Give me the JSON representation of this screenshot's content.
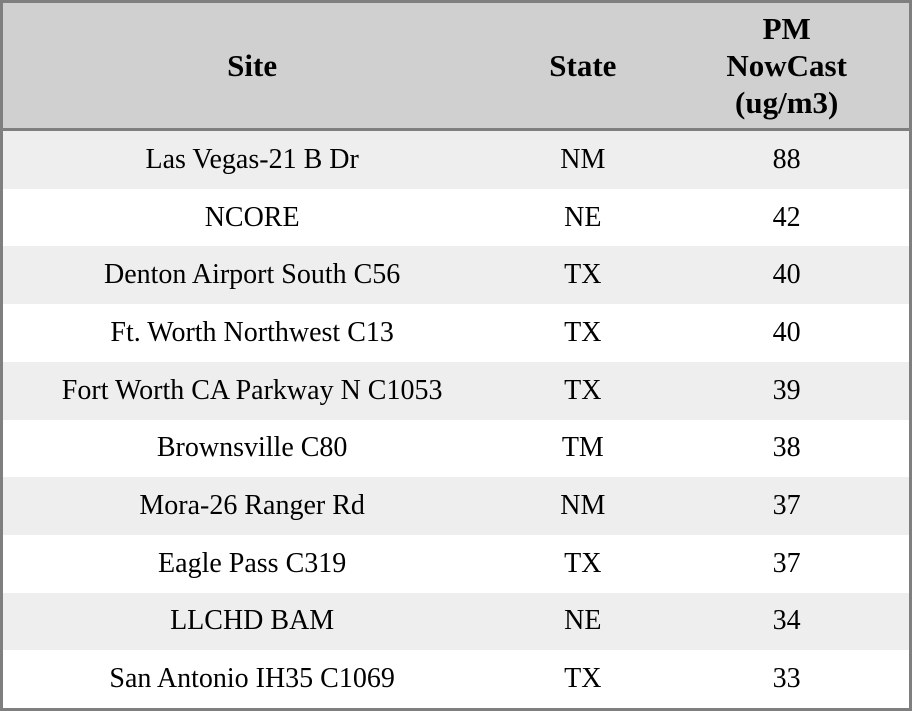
{
  "chart_data": {
    "type": "table",
    "title": "",
    "columns": [
      "Site",
      "State",
      "PM NowCast (ug/m3)"
    ],
    "pm_header_lines": [
      "PM",
      "NowCast",
      "(ug/m3)"
    ],
    "rows": [
      [
        "Las Vegas-21 B Dr",
        "NM",
        "88"
      ],
      [
        "NCORE",
        "NE",
        "42"
      ],
      [
        "Denton Airport South C56",
        "TX",
        "40"
      ],
      [
        "Ft. Worth Northwest C13",
        "TX",
        "40"
      ],
      [
        "Fort Worth CA Parkway N C1053",
        "TX",
        "39"
      ],
      [
        "Brownsville C80",
        "TM",
        "38"
      ],
      [
        "Mora-26 Ranger Rd",
        "NM",
        "37"
      ],
      [
        "Eagle Pass C319",
        "TX",
        "37"
      ],
      [
        "LLCHD BAM",
        "NE",
        "34"
      ],
      [
        "San Antonio IH35 C1069",
        "TX",
        "33"
      ]
    ],
    "layout": {
      "header_bg": "#d0d0d0",
      "row_alt_bg": "#eeeeee",
      "row_bg": "#ffffff",
      "border_color": "#7f7f7f",
      "text_color": "#000000",
      "grid": "horizontal-banding-only"
    }
  }
}
